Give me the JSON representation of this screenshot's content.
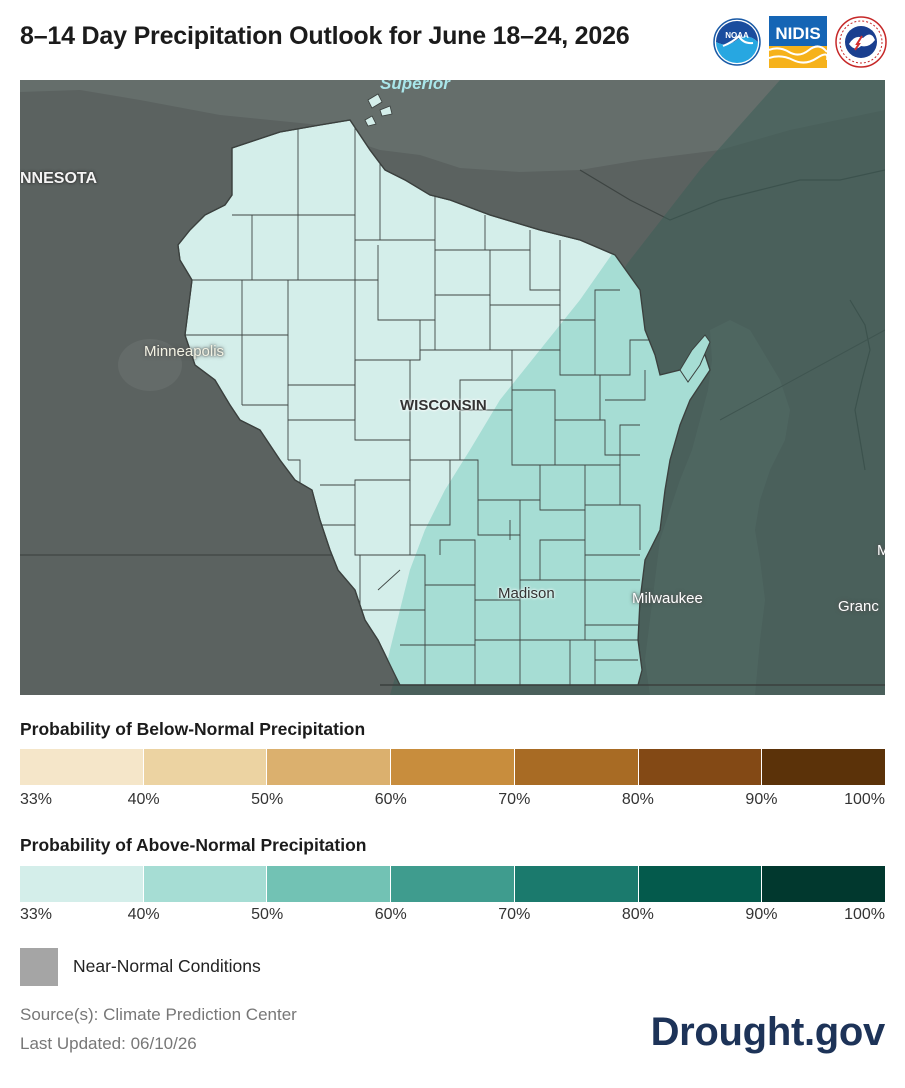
{
  "title": "8–14 Day Precipitation Outlook for June 18–24, 2026",
  "logos": {
    "noaa": {
      "text": "NOAA",
      "icon": "noaa-logo-icon"
    },
    "nidis": {
      "text": "NIDIS",
      "icon": "nidis-logo-icon"
    },
    "nws": {
      "icon": "national-weather-service-logo-icon"
    }
  },
  "map": {
    "labels": {
      "lake": "Superior",
      "state_mn": "NNESOTA",
      "minneapolis": "Minneapolis",
      "wisconsin": "WISCONSIN",
      "madison": "Madison",
      "milwaukee": "Milwaukee",
      "grand": "Granc",
      "edge_m": "M"
    },
    "fills": {
      "above_33_40": "#d4eeea",
      "above_40_50": "#a6ddd4",
      "near_normal_overlay": "#4f6762",
      "basemap_land": "#5b6260",
      "basemap_water": "#656e6b"
    }
  },
  "legend": {
    "below": {
      "title": "Probability of Below-Normal Precipitation",
      "colors": [
        "#f5e6c9",
        "#ecd3a2",
        "#dbb06e",
        "#c88d3d",
        "#a86b24",
        "#834915",
        "#5b3209"
      ],
      "ticks": [
        "33%",
        "40%",
        "50%",
        "60%",
        "70%",
        "80%",
        "90%",
        "100%"
      ]
    },
    "above": {
      "title": "Probability of Above-Normal Precipitation",
      "colors": [
        "#d4eeea",
        "#a6ddd4",
        "#72c2b4",
        "#3f9c8e",
        "#1b7a6d",
        "#045a4c",
        "#01382e"
      ],
      "ticks": [
        "33%",
        "40%",
        "50%",
        "60%",
        "70%",
        "80%",
        "90%",
        "100%"
      ]
    },
    "near_normal": {
      "label": "Near-Normal Conditions",
      "color": "#a5a5a5"
    }
  },
  "footer": {
    "source": "Source(s): Climate Prediction Center",
    "updated": "Last Updated: 06/10/26",
    "brand": "Drought.gov"
  }
}
